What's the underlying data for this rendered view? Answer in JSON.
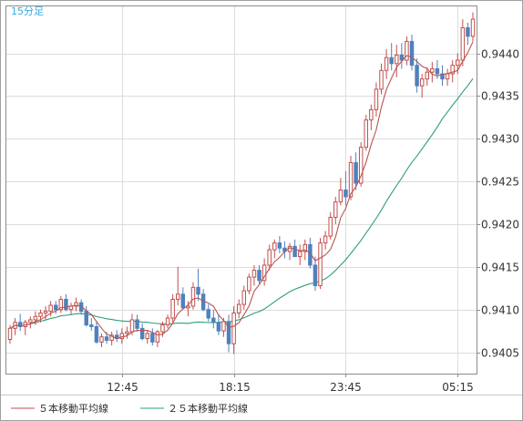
{
  "chart_data": {
    "type": "candlestick",
    "title": "15分足",
    "ylim": [
      0.94025,
      0.94455
    ],
    "y_ticks": [
      "0.9440",
      "0.9435",
      "0.9430",
      "0.9425",
      "0.9420",
      "0.9415",
      "0.9410",
      "0.9405"
    ],
    "y_tick_values": [
      0.944,
      0.9435,
      0.943,
      0.9425,
      0.942,
      0.9415,
      0.941,
      0.9405
    ],
    "x_ticks": [
      "12:45",
      "18:15",
      "23:45",
      "05:15"
    ],
    "x_tick_indices": [
      22,
      44,
      66,
      88
    ],
    "grid": true,
    "legend_position": "bottom-left",
    "series": [
      {
        "name": "５本移動平均線",
        "color": "#b85450"
      },
      {
        "name": "２５本移動平均線",
        "color": "#2e9e7e"
      }
    ],
    "up_color": "#c0504d",
    "down_color": "#4f81bd",
    "candles": [
      [
        0.94065,
        0.94082,
        0.9406,
        0.94078
      ],
      [
        0.94078,
        0.9409,
        0.9407,
        0.94085
      ],
      [
        0.94085,
        0.94095,
        0.94075,
        0.9408
      ],
      [
        0.9408,
        0.94088,
        0.9407,
        0.94085
      ],
      [
        0.94085,
        0.94092,
        0.94078,
        0.94088
      ],
      [
        0.94088,
        0.94098,
        0.94082,
        0.94092
      ],
      [
        0.94092,
        0.941,
        0.94085,
        0.94096
      ],
      [
        0.94096,
        0.94104,
        0.94088,
        0.94098
      ],
      [
        0.94098,
        0.9411,
        0.94092,
        0.94105
      ],
      [
        0.94105,
        0.9411,
        0.94095,
        0.941
      ],
      [
        0.941,
        0.94116,
        0.94096,
        0.94112
      ],
      [
        0.94112,
        0.94118,
        0.94098,
        0.941
      ],
      [
        0.941,
        0.94108,
        0.94094,
        0.94104
      ],
      [
        0.94104,
        0.94114,
        0.94098,
        0.94108
      ],
      [
        0.94108,
        0.94112,
        0.94094,
        0.94098
      ],
      [
        0.94098,
        0.94104,
        0.9408,
        0.94082
      ],
      [
        0.94082,
        0.9409,
        0.94075,
        0.9408
      ],
      [
        0.9408,
        0.94086,
        0.9406,
        0.94062
      ],
      [
        0.94062,
        0.94072,
        0.94056,
        0.94068
      ],
      [
        0.94068,
        0.94074,
        0.9406,
        0.94064
      ],
      [
        0.94064,
        0.94074,
        0.94058,
        0.9407
      ],
      [
        0.9407,
        0.94076,
        0.94062,
        0.94066
      ],
      [
        0.94066,
        0.94078,
        0.9406,
        0.94072
      ],
      [
        0.94072,
        0.9408,
        0.94066,
        0.94074
      ],
      [
        0.94074,
        0.94095,
        0.9407,
        0.94088
      ],
      [
        0.94088,
        0.94094,
        0.94074,
        0.94078
      ],
      [
        0.94078,
        0.94084,
        0.94064,
        0.94066
      ],
      [
        0.94066,
        0.94076,
        0.9406,
        0.94072
      ],
      [
        0.94072,
        0.94078,
        0.94058,
        0.94062
      ],
      [
        0.94062,
        0.94076,
        0.94056,
        0.94074
      ],
      [
        0.94074,
        0.94086,
        0.94068,
        0.94082
      ],
      [
        0.94082,
        0.94094,
        0.94078,
        0.9409
      ],
      [
        0.9409,
        0.94118,
        0.94085,
        0.94112
      ],
      [
        0.94112,
        0.9415,
        0.94105,
        0.94118
      ],
      [
        0.94118,
        0.94126,
        0.941,
        0.94102
      ],
      [
        0.94102,
        0.9411,
        0.94092,
        0.94104
      ],
      [
        0.94104,
        0.94132,
        0.941,
        0.94126
      ],
      [
        0.94126,
        0.94148,
        0.9411,
        0.94118
      ],
      [
        0.94118,
        0.94124,
        0.94098,
        0.941
      ],
      [
        0.941,
        0.94106,
        0.94086,
        0.9409
      ],
      [
        0.9409,
        0.941,
        0.94078,
        0.94085
      ],
      [
        0.94085,
        0.94095,
        0.9407,
        0.94075
      ],
      [
        0.94075,
        0.9409,
        0.94068,
        0.94086
      ],
      [
        0.94086,
        0.94094,
        0.9405,
        0.9406
      ],
      [
        0.9406,
        0.94104,
        0.94048,
        0.94096
      ],
      [
        0.94096,
        0.94112,
        0.9409,
        0.94106
      ],
      [
        0.94106,
        0.94128,
        0.941,
        0.94122
      ],
      [
        0.94122,
        0.94142,
        0.94118,
        0.94138
      ],
      [
        0.94138,
        0.94152,
        0.94128,
        0.94146
      ],
      [
        0.94146,
        0.94152,
        0.9413,
        0.94134
      ],
      [
        0.94134,
        0.9416,
        0.94128,
        0.94152
      ],
      [
        0.94152,
        0.94176,
        0.94146,
        0.9417
      ],
      [
        0.9417,
        0.94182,
        0.9416,
        0.94178
      ],
      [
        0.94178,
        0.94186,
        0.94166,
        0.94172
      ],
      [
        0.94172,
        0.9418,
        0.9416,
        0.94168
      ],
      [
        0.94168,
        0.94178,
        0.94158,
        0.94174
      ],
      [
        0.94174,
        0.94182,
        0.94166,
        0.94162
      ],
      [
        0.94162,
        0.94176,
        0.94152,
        0.94168
      ],
      [
        0.94168,
        0.94182,
        0.94158,
        0.94176
      ],
      [
        0.94176,
        0.94184,
        0.94148,
        0.94152
      ],
      [
        0.94152,
        0.94162,
        0.94122,
        0.94128
      ],
      [
        0.94128,
        0.94184,
        0.94124,
        0.94178
      ],
      [
        0.94178,
        0.94192,
        0.9417,
        0.94186
      ],
      [
        0.94186,
        0.94214,
        0.94182,
        0.94208
      ],
      [
        0.94208,
        0.94232,
        0.942,
        0.94226
      ],
      [
        0.94226,
        0.94254,
        0.94222,
        0.9424
      ],
      [
        0.9424,
        0.94262,
        0.94222,
        0.94232
      ],
      [
        0.94232,
        0.9428,
        0.94228,
        0.94272
      ],
      [
        0.94272,
        0.94284,
        0.9424,
        0.94248
      ],
      [
        0.94248,
        0.94296,
        0.94244,
        0.9429
      ],
      [
        0.9429,
        0.94328,
        0.94286,
        0.94322
      ],
      [
        0.94322,
        0.9434,
        0.9431,
        0.94334
      ],
      [
        0.94334,
        0.94366,
        0.94326,
        0.94358
      ],
      [
        0.94358,
        0.94388,
        0.94352,
        0.9438
      ],
      [
        0.9438,
        0.94405,
        0.9437,
        0.94395
      ],
      [
        0.94395,
        0.94412,
        0.9438,
        0.94388
      ],
      [
        0.94388,
        0.9441,
        0.94372,
        0.94398
      ],
      [
        0.94398,
        0.94412,
        0.94382,
        0.94392
      ],
      [
        0.94392,
        0.9442,
        0.94386,
        0.94414
      ],
      [
        0.94414,
        0.94422,
        0.9438,
        0.94386
      ],
      [
        0.94386,
        0.94394,
        0.94354,
        0.94362
      ],
      [
        0.94362,
        0.94376,
        0.94348,
        0.9437
      ],
      [
        0.9437,
        0.94384,
        0.94362,
        0.94378
      ],
      [
        0.94378,
        0.9439,
        0.94366,
        0.94382
      ],
      [
        0.94382,
        0.94392,
        0.9437,
        0.94376
      ],
      [
        0.94376,
        0.94386,
        0.94362,
        0.9437
      ],
      [
        0.9437,
        0.94382,
        0.94362,
        0.94376
      ],
      [
        0.94376,
        0.94392,
        0.94366,
        0.94386
      ],
      [
        0.94386,
        0.944,
        0.94376,
        0.94392
      ],
      [
        0.94392,
        0.9444,
        0.94385,
        0.9443
      ],
      [
        0.9443,
        0.94436,
        0.9441,
        0.9442
      ],
      [
        0.9442,
        0.94448,
        0.94414,
        0.9444
      ]
    ]
  }
}
